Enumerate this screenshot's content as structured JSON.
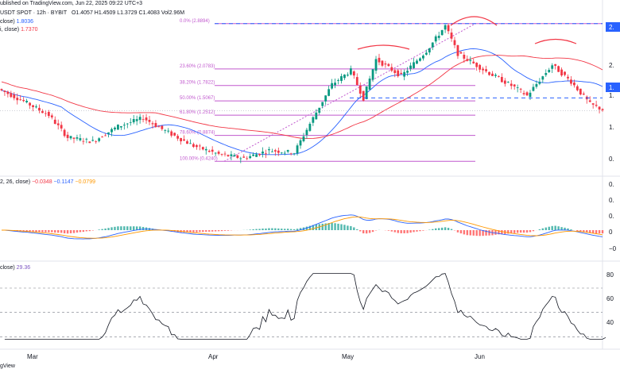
{
  "header": {
    "published": "ublished on TradingView.com, Jun 22, 2025 09:22 UTC+3",
    "symbol": "USDT SPOT · 12h · BYBIT",
    "ohlc": "O1.4057  H1.4509  L1.3729  C1.4083  Vol2.96M",
    "ma_line_1_label": "close)",
    "ma_line_1_value": "1.8036",
    "ma_line_2_label": "i, close)",
    "ma_line_2_value": "1.7370",
    "macd_label": "2, 26, close)",
    "macd_v1": "−0.0348",
    "macd_v2": "−0.1147",
    "macd_v3": "−0.0799",
    "rsi_label": "close)",
    "rsi_value": "29.36",
    "watermark": "gView"
  },
  "chart_data": [
    {
      "type": "candlestick",
      "pane": "price",
      "title": "USDT SPOT · 12h · BYBIT",
      "x_labels": [
        "Mar",
        "Apr",
        "May",
        "Jun"
      ],
      "y_ticks": [
        "2.",
        "2.",
        "1.",
        "1.",
        "0."
      ],
      "fib_levels": [
        {
          "label": "0.0% (2.8894)",
          "value": 2.8894
        },
        {
          "label": "23.60% (2.0783)",
          "value": 2.0783
        },
        {
          "label": "38.20% (1.7822)",
          "value": 1.7822
        },
        {
          "label": "50.00% (1.5067)",
          "value": 1.5067
        },
        {
          "label": "61.80% (1.2512)",
          "value": 1.2512
        },
        {
          "label": "78.60% (0.8874)",
          "value": 0.8874
        },
        {
          "label": "100.00% (0.4240)",
          "value": 0.424
        }
      ],
      "right_badges": [
        "2.",
        "1."
      ],
      "series": [
        {
          "name": "MA fast",
          "color": "#2962ff"
        },
        {
          "name": "MA slow",
          "color": "#f23645"
        }
      ],
      "colors": {
        "up": "#089981",
        "down": "#f23645",
        "fib": "#c158ce",
        "dashed": "#2962ff",
        "arc": "#f23645"
      }
    },
    {
      "type": "histogram",
      "pane": "macd",
      "y_ticks": [
        "0.",
        "0.",
        "0.",
        "0",
        "−0"
      ],
      "series": [
        {
          "name": "MACD",
          "color": "#2962ff"
        },
        {
          "name": "Signal",
          "color": "#ff9800"
        }
      ]
    },
    {
      "type": "line",
      "pane": "rsi",
      "y_ticks": [
        "80",
        "60",
        "40"
      ],
      "levels": [
        70,
        50,
        30
      ],
      "series": [
        {
          "name": "RSI",
          "color": "#131722",
          "last": 29.36
        }
      ]
    }
  ]
}
